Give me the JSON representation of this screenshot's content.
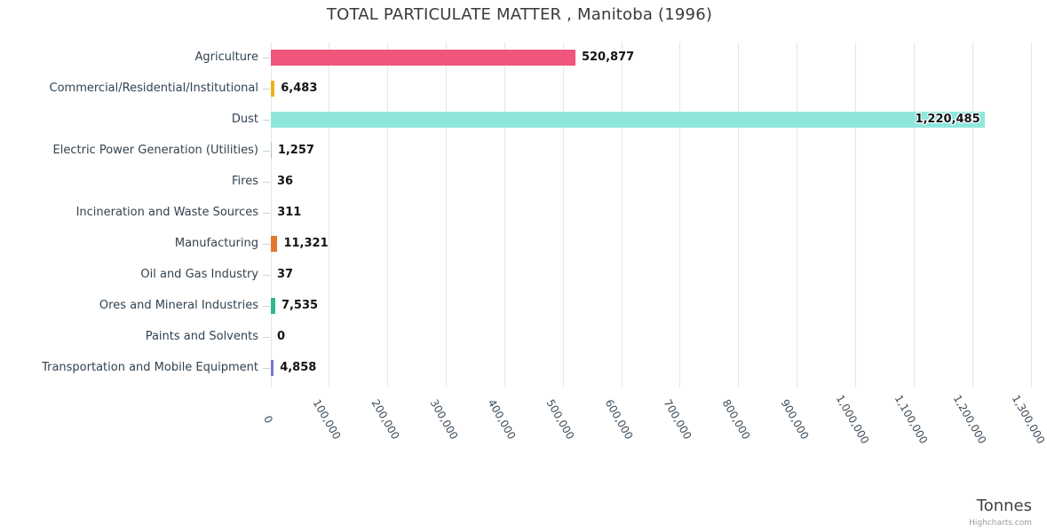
{
  "chart_data": {
    "type": "bar",
    "orientation": "horizontal",
    "title": "TOTAL PARTICULATE MATTER , Manitoba (1996)",
    "xlabel": "Tonnes",
    "credit": "Highcharts.com",
    "legend": false,
    "grid": true,
    "categories": [
      "Agriculture",
      "Commercial/Residential/Institutional",
      "Dust",
      "Electric Power Generation (Utilities)",
      "Fires",
      "Incineration and Waste Sources",
      "Manufacturing",
      "Oil and Gas Industry",
      "Ores and Mineral Industries",
      "Paints and Solvents",
      "Transportation and Mobile Equipment"
    ],
    "values": [
      520877,
      6483,
      1220485,
      1257,
      36,
      311,
      11321,
      37,
      7535,
      0,
      4858
    ],
    "value_labels": [
      "520,877",
      "6,483",
      "1,220,485",
      "1,257",
      "36",
      "311",
      "11,321",
      "37",
      "7,535",
      "0",
      "4,858"
    ],
    "bar_colors": [
      "#f0557c",
      "#efb019",
      "#8fe7dc",
      "#b6c0c9",
      "#b6c0c9",
      "#b6c0c9",
      "#e0782e",
      "#b6c0c9",
      "#2db892",
      "#b6c0c9",
      "#7478de"
    ],
    "xlim": [
      0,
      1300000
    ],
    "tick_interval": 100000,
    "x_tick_labels": [
      "0",
      "100,000",
      "200,000",
      "300,000",
      "400,000",
      "500,000",
      "600,000",
      "700,000",
      "800,000",
      "900,000",
      "1,000,000",
      "1,100,000",
      "1,200,000",
      "1,300,000"
    ],
    "colors": {
      "background": "#ffffff",
      "grid": "#e6e6e6",
      "category_tick": "#ccd2d8",
      "title_text": "#3a3a3a",
      "category_text": "#33424f",
      "value_text": "#141414",
      "axis_label_text": "#3c4b58",
      "axis_title_text": "#424242",
      "credit_text": "#9a9a9a"
    }
  }
}
